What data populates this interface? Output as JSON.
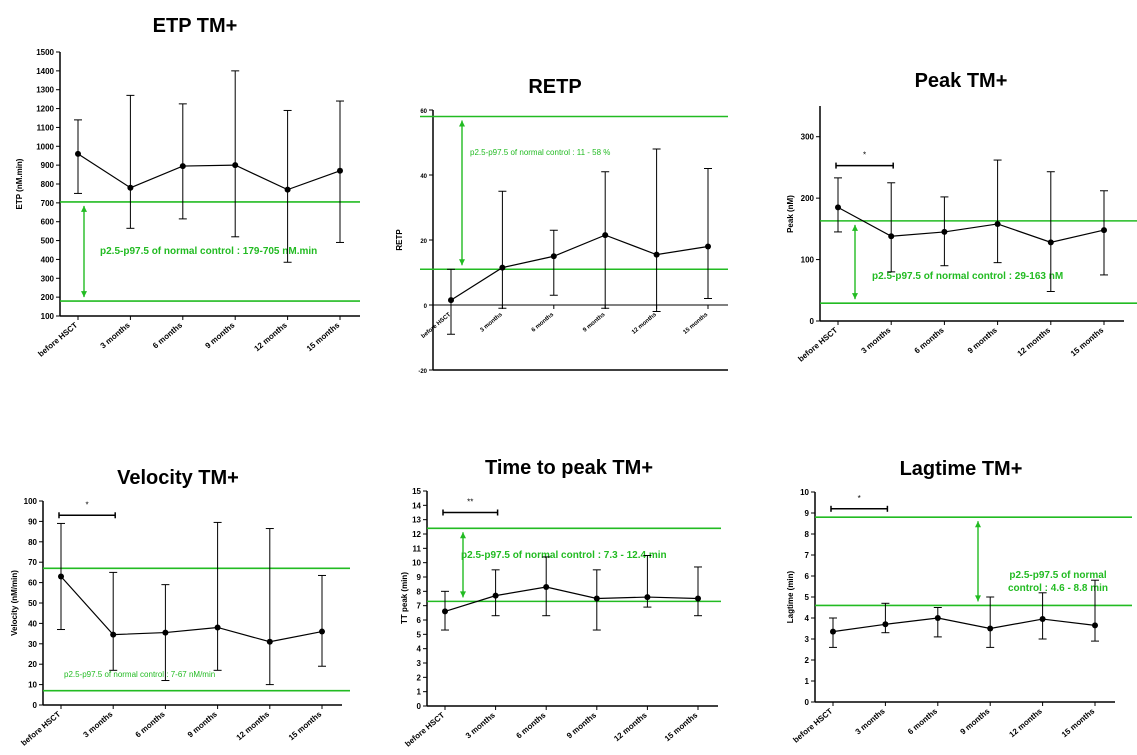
{
  "colors": {
    "normal_range": "#22bb22",
    "data": "#000000"
  },
  "chart_data": [
    {
      "type": "line",
      "title": "ETP TM+",
      "ylabel": "ETP (nM.min)",
      "xlabel": "",
      "categories": [
        "before HSCT",
        "3 months",
        "6 months",
        "9 months",
        "12 months",
        "15 months"
      ],
      "ylim": [
        100,
        1500
      ],
      "yticks": [
        100,
        200,
        300,
        400,
        500,
        600,
        700,
        800,
        900,
        1000,
        1100,
        1200,
        1300,
        1400,
        1500
      ],
      "series": [
        {
          "values": [
            960,
            780,
            895,
            900,
            770,
            870
          ],
          "error_low": [
            750,
            565,
            615,
            520,
            385,
            490
          ],
          "error_high": [
            1140,
            1270,
            1225,
            1400,
            1190,
            1240
          ]
        }
      ],
      "normal_range": {
        "lower": 179,
        "upper": 705
      },
      "annotation": "p2.5-p97.5 of normal control : 179-705 nM.min",
      "significance": null
    },
    {
      "type": "line",
      "title": "RETP",
      "ylabel": "RETP",
      "xlabel": "",
      "categories": [
        "before HSCT",
        "3 months",
        "6 months",
        "9 months",
        "12 months",
        "15 months"
      ],
      "ylim": [
        -20,
        60
      ],
      "yticks": [
        -20,
        0,
        20,
        40,
        60
      ],
      "series": [
        {
          "values": [
            1.5,
            11.5,
            15,
            21.5,
            15.5,
            18
          ],
          "error_low": [
            -9,
            -1,
            3,
            -1,
            -2,
            2
          ],
          "error_high": [
            11,
            35,
            23,
            41,
            48,
            42
          ]
        }
      ],
      "normal_range": {
        "lower": 11,
        "upper": 58
      },
      "annotation": "p2.5-p97.5 of normal control : 11 - 58 %",
      "significance": null
    },
    {
      "type": "line",
      "title": "Peak TM+",
      "ylabel": "Peak (nM)",
      "xlabel": "",
      "categories": [
        "before HSCT",
        "3 months",
        "6 months",
        "9 months",
        "12 months",
        "15 months"
      ],
      "ylim": [
        0,
        350
      ],
      "yticks": [
        0,
        100,
        200,
        300
      ],
      "series": [
        {
          "values": [
            185,
            138,
            145,
            158,
            128,
            148
          ],
          "error_low": [
            145,
            80,
            90,
            95,
            48,
            75
          ],
          "error_high": [
            233,
            225,
            202,
            262,
            243,
            212
          ]
        }
      ],
      "normal_range": {
        "lower": 29,
        "upper": 163
      },
      "annotation": "p2.5-p97.5 of normal control  : 29-163 nM",
      "significance": {
        "label": "*",
        "from": 0,
        "to": 1,
        "y": 253
      }
    },
    {
      "type": "line",
      "title": "Velocity TM+",
      "ylabel": "Velocity (nM/min)",
      "xlabel": "",
      "categories": [
        "before HSCT",
        "3 months",
        "6 months",
        "9 months",
        "12 months",
        "15 months"
      ],
      "ylim": [
        0,
        100
      ],
      "yticks": [
        0,
        10,
        20,
        30,
        40,
        50,
        60,
        70,
        80,
        90,
        100
      ],
      "series": [
        {
          "values": [
            63,
            34.5,
            35.5,
            38,
            31,
            36
          ],
          "error_low": [
            37,
            17,
            12,
            17,
            10,
            19
          ],
          "error_high": [
            89,
            65,
            59,
            89.5,
            86.5,
            63.5
          ]
        }
      ],
      "normal_range": {
        "lower": 7,
        "upper": 67
      },
      "annotation": "p2.5-p97.5 of normal control : 7-67 nM/min",
      "significance": {
        "label": "*",
        "from": 0,
        "to": 1,
        "y": 93
      }
    },
    {
      "type": "line",
      "title": "Time to peak TM+",
      "ylabel": "TT peak  (min)",
      "xlabel": "",
      "categories": [
        "before HSCT",
        "3 months",
        "6 months",
        "9 months",
        "12 months",
        "15 months"
      ],
      "ylim": [
        0,
        15
      ],
      "yticks": [
        0,
        1,
        2,
        3,
        4,
        5,
        6,
        7,
        8,
        9,
        10,
        11,
        12,
        13,
        14,
        15
      ],
      "series": [
        {
          "values": [
            6.6,
            7.7,
            8.3,
            7.5,
            7.6,
            7.5
          ],
          "error_low": [
            5.3,
            6.3,
            6.3,
            5.3,
            6.9,
            6.3
          ],
          "error_high": [
            8.0,
            9.5,
            10.4,
            9.5,
            10.5,
            9.7
          ]
        }
      ],
      "normal_range": {
        "lower": 7.3,
        "upper": 12.4
      },
      "annotation": "p2.5-p97.5 of normal control : 7.3 - 12.4 min",
      "significance": {
        "label": "**",
        "from": 0,
        "to": 1,
        "y": 13.5
      }
    },
    {
      "type": "line",
      "title": "Lagtime TM+",
      "ylabel": "Lagtime (min)",
      "xlabel": "",
      "categories": [
        "before HSCT",
        "3 months",
        "6 months",
        "9 months",
        "12 months",
        "15 months"
      ],
      "ylim": [
        0,
        10
      ],
      "yticks": [
        0,
        1,
        2,
        3,
        4,
        5,
        6,
        7,
        8,
        9,
        10
      ],
      "series": [
        {
          "values": [
            3.35,
            3.7,
            4.0,
            3.5,
            3.95,
            3.65
          ],
          "error_low": [
            2.6,
            3.3,
            3.1,
            2.6,
            3.0,
            2.9
          ],
          "error_high": [
            4.0,
            4.7,
            4.5,
            5.0,
            5.2,
            5.8
          ]
        }
      ],
      "normal_range": {
        "lower": 4.6,
        "upper": 8.8
      },
      "annotation": "p2.5-p97.5 of normal control : 4.6 - 8.8 min",
      "significance": {
        "label": "*",
        "from": 0,
        "to": 1,
        "y": 9.2
      }
    }
  ]
}
